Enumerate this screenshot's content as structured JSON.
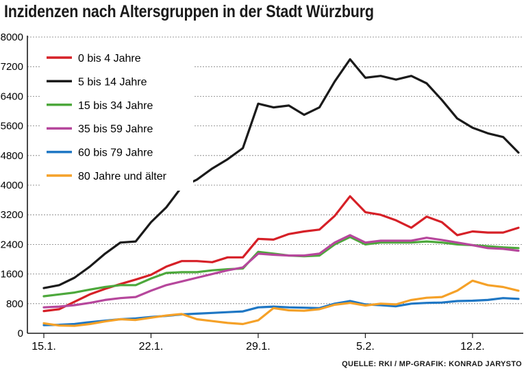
{
  "title": "Inzidenzen nach Altersgruppen in der Stadt Würzburg",
  "source": "QUELLE: RKI / MP-GRAFIK: KONRAD JARYSTO",
  "chart_data": {
    "type": "line",
    "title": "Inzidenzen nach Altersgruppen in der Stadt Würzburg",
    "xlabel": "",
    "ylabel": "",
    "ylim": [
      0,
      8000
    ],
    "yticks": [
      "0",
      "800",
      "1600",
      "2400",
      "3200",
      "4000",
      "4800",
      "5600",
      "6400",
      "7200",
      "8000"
    ],
    "x_ticklabels": [
      "15.1.",
      "22.1.",
      "29.1.",
      "5.2.",
      "12.2."
    ],
    "x_tick_index": [
      0,
      7,
      14,
      21,
      28
    ],
    "grid": "horizontal",
    "legend_position": "top-left",
    "series": [
      {
        "name": "0 bis 4 Jahre",
        "color": "#d62027",
        "values": [
          600,
          650,
          850,
          1050,
          1200,
          1330,
          1450,
          1580,
          1800,
          1950,
          1950,
          1920,
          2050,
          2050,
          2550,
          2530,
          2680,
          2750,
          2800,
          3170,
          3700,
          3270,
          3200,
          3050,
          2850,
          3150,
          3000,
          2650,
          2750,
          2720,
          2720,
          2850
        ]
      },
      {
        "name": "5 bis 14 Jahre",
        "color": "#1a1a1a",
        "values": [
          1220,
          1300,
          1500,
          1800,
          2150,
          2450,
          2480,
          3000,
          3400,
          3950,
          4150,
          4450,
          4700,
          5000,
          6200,
          6100,
          6150,
          5900,
          6100,
          6800,
          7400,
          6900,
          6950,
          6850,
          6950,
          6750,
          6300,
          5800,
          5550,
          5400,
          5300,
          4880
        ]
      },
      {
        "name": "15 bis 34 Jahre",
        "color": "#4da83c",
        "values": [
          1000,
          1050,
          1100,
          1180,
          1250,
          1300,
          1300,
          1480,
          1630,
          1650,
          1650,
          1700,
          1730,
          1750,
          2200,
          2150,
          2100,
          2080,
          2100,
          2400,
          2600,
          2400,
          2450,
          2450,
          2450,
          2480,
          2450,
          2400,
          2380,
          2350,
          2320,
          2300
        ]
      },
      {
        "name": "35 bis 59 Jahre",
        "color": "#b6479c",
        "values": [
          700,
          720,
          760,
          820,
          900,
          950,
          980,
          1150,
          1300,
          1400,
          1500,
          1600,
          1700,
          1780,
          2150,
          2120,
          2100,
          2100,
          2150,
          2450,
          2650,
          2450,
          2500,
          2500,
          2500,
          2580,
          2520,
          2450,
          2380,
          2300,
          2280,
          2230
        ]
      },
      {
        "name": "60 bis 79 Jahre",
        "color": "#1f77c4",
        "values": [
          220,
          230,
          250,
          300,
          340,
          380,
          400,
          440,
          470,
          510,
          530,
          550,
          570,
          590,
          700,
          720,
          700,
          690,
          680,
          800,
          870,
          780,
          760,
          730,
          800,
          820,
          830,
          870,
          880,
          900,
          950,
          930
        ]
      },
      {
        "name": "80 Jahre und älter",
        "color": "#f5a128",
        "values": [
          270,
          210,
          200,
          250,
          320,
          380,
          360,
          420,
          480,
          520,
          380,
          330,
          280,
          250,
          350,
          680,
          620,
          610,
          650,
          770,
          820,
          750,
          800,
          780,
          900,
          960,
          980,
          1150,
          1420,
          1300,
          1250,
          1150
        ]
      }
    ]
  }
}
